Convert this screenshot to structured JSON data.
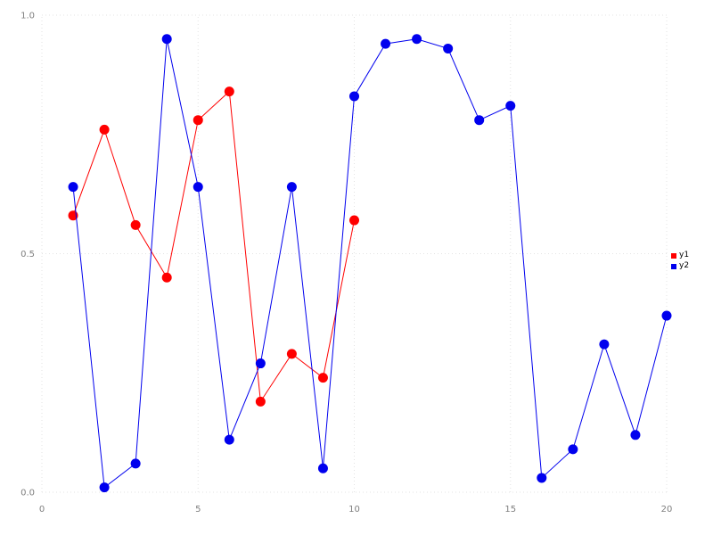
{
  "chart_data": {
    "type": "line",
    "title": "",
    "xlabel": "",
    "ylabel": "",
    "xlim": [
      0,
      20
    ],
    "ylim": [
      0,
      1
    ],
    "x_ticks": [
      0,
      5,
      10,
      15,
      20
    ],
    "x_tick_labels": [
      "0",
      "5",
      "10",
      "15",
      "20"
    ],
    "y_ticks": [
      0.0,
      0.5,
      1.0
    ],
    "y_tick_labels": [
      "0.0",
      "0.5",
      "1.0"
    ],
    "grid": "dotted",
    "grid_color": "#e3e3e3",
    "legend_position": "right",
    "series": [
      {
        "name": "y1",
        "color": "#ff0000",
        "x": [
          1,
          2,
          3,
          4,
          5,
          6,
          7,
          8,
          9,
          10
        ],
        "y": [
          0.58,
          0.76,
          0.56,
          0.45,
          0.78,
          0.84,
          0.19,
          0.29,
          0.24,
          0.57
        ]
      },
      {
        "name": "y2",
        "color": "#0000ee",
        "x": [
          1,
          2,
          3,
          4,
          5,
          6,
          7,
          8,
          9,
          10,
          11,
          12,
          13,
          14,
          15,
          16,
          17,
          18,
          19,
          20
        ],
        "y": [
          0.64,
          0.01,
          0.06,
          0.95,
          0.64,
          0.11,
          0.27,
          0.64,
          0.05,
          0.83,
          0.94,
          0.95,
          0.93,
          0.78,
          0.81,
          0.03,
          0.09,
          0.31,
          0.12,
          0.37
        ]
      }
    ]
  }
}
